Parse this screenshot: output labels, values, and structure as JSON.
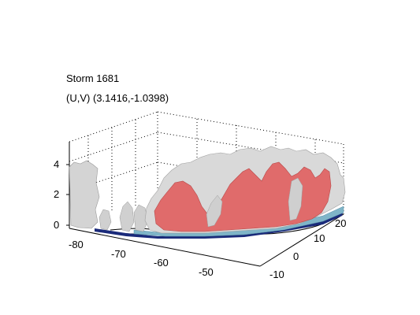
{
  "figure": {
    "title_line1": "Storm 1681",
    "title_line2": "(U,V) (3.1416,-1.0398)"
  },
  "chart_data": {
    "type": "surface3d",
    "title": "Storm 1681",
    "subtitle": "(U,V) (3.1416,-1.0398)",
    "xlabel": "",
    "ylabel": "",
    "zlabel": "",
    "x_ticks": [
      "-80",
      "-70",
      "-60",
      "-50"
    ],
    "y_ticks": [
      "-10",
      "0",
      "10",
      "20"
    ],
    "z_ticks": [
      "0",
      "2",
      "4"
    ],
    "xlim": [
      -85,
      -40
    ],
    "ylim": [
      -12,
      24
    ],
    "zlim": [
      0,
      5
    ],
    "grid": true,
    "box": "dotted",
    "isosurfaces": [
      {
        "color": "#d9d9d9",
        "level": "outer"
      },
      {
        "color": "#e06b6b",
        "level": "inner"
      },
      {
        "color": "#7fb5c8",
        "level": "base"
      },
      {
        "color": "#1a2a7a",
        "level": "floor"
      }
    ]
  }
}
